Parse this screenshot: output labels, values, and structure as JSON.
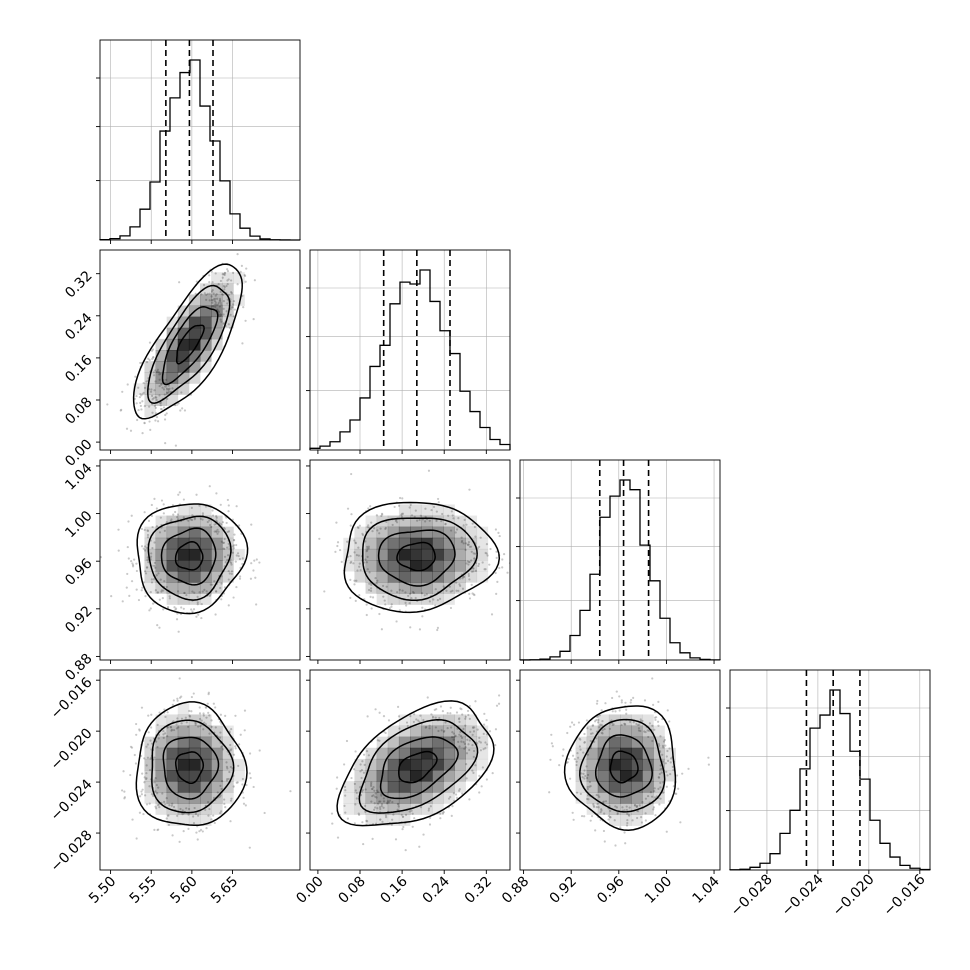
{
  "chart_data": {
    "type": "corner",
    "dimensions": 4,
    "colors": {
      "line": "#000000",
      "grid": "#b0b0b0",
      "density": "#000000",
      "scatter": "#9a9a9a",
      "background": "#ffffff"
    },
    "grid": true,
    "parameters": [
      {
        "range": [
          5.487,
          5.733
        ],
        "ticks": [
          5.5,
          5.55,
          5.6,
          5.65
        ],
        "tick_labels": [
          "5.50",
          "5.55",
          "5.60",
          "5.65"
        ],
        "quantiles": [
          5.568,
          5.597,
          5.626
        ],
        "median": 5.597,
        "sigma": 0.029,
        "hist_peak_counts": [
          0.6,
          1.0,
          0.4
        ]
      },
      {
        "range": [
          -0.015,
          0.365
        ],
        "ticks": [
          0.0,
          0.08,
          0.16,
          0.24,
          0.32
        ],
        "tick_labels": [
          "0.00",
          "0.08",
          "0.16",
          "0.24",
          "0.32"
        ],
        "quantiles": [
          0.125,
          0.188,
          0.251
        ],
        "median": 0.188,
        "sigma": 0.063
      },
      {
        "range": [
          0.877,
          1.045
        ],
        "ticks": [
          0.88,
          0.92,
          0.96,
          1.0,
          1.04
        ],
        "tick_labels": [
          "0.88",
          "0.92",
          "0.96",
          "1.00",
          "1.04"
        ],
        "quantiles": [
          0.944,
          0.964,
          0.985
        ],
        "median": 0.964,
        "sigma": 0.02
      },
      {
        "range": [
          -0.0309,
          -0.0152
        ],
        "ticks": [
          -0.028,
          -0.024,
          -0.02,
          -0.016
        ],
        "tick_labels": [
          "−0.028",
          "−0.024",
          "−0.020",
          "−0.016"
        ],
        "quantiles": [
          -0.0249,
          -0.0228,
          -0.0207
        ],
        "median": -0.0228,
        "sigma": 0.0021
      }
    ],
    "correlations": [
      [
        1.0,
        0.75,
        0.05,
        0.0
      ],
      [
        0.75,
        1.0,
        0.05,
        0.45
      ],
      [
        0.05,
        0.05,
        1.0,
        0.0
      ],
      [
        0.0,
        0.45,
        0.0,
        1.0
      ]
    ],
    "contour_levels_sigma": [
      0.5,
      1.0,
      1.5,
      2.0
    ]
  }
}
